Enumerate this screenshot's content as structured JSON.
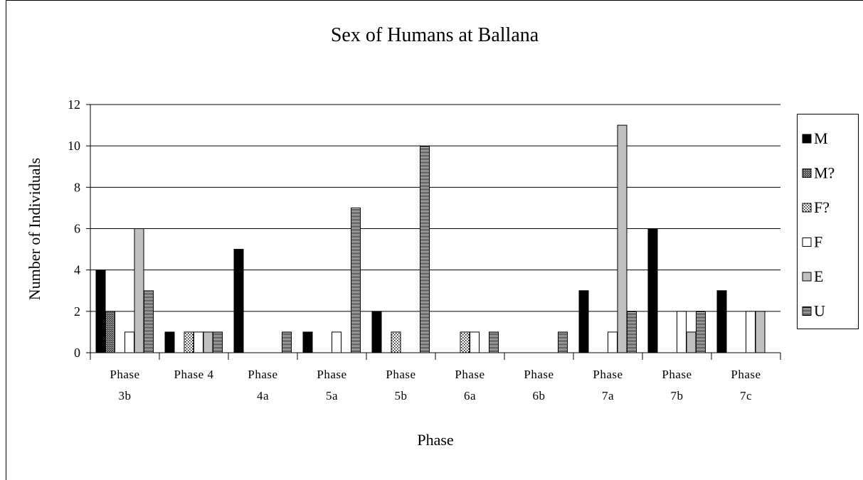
{
  "chart_data": {
    "type": "bar",
    "title": "Sex of Humans at Ballana",
    "x_label": "Phase",
    "y_label": "Number of Individuals",
    "categories": [
      "Phase 3b",
      "Phase 4",
      "Phase 4a",
      "Phase 5a",
      "Phase 5b",
      "Phase 6a",
      "Phase 6b",
      "Phase 7a",
      "Phase 7b",
      "Phase 7c"
    ],
    "series": [
      {
        "name": "M",
        "color": "#000000",
        "pattern": "solid",
        "values": [
          4,
          1,
          5,
          1,
          2,
          0,
          0,
          3,
          6,
          3
        ]
      },
      {
        "name": "M?",
        "color": "#808080",
        "pattern": "crosshatch",
        "values": [
          2,
          0,
          0,
          0,
          0,
          0,
          0,
          0,
          0,
          0
        ]
      },
      {
        "name": "F?",
        "color": "#ffffff",
        "pattern": "dots",
        "values": [
          0,
          1,
          0,
          0,
          1,
          1,
          0,
          0,
          0,
          0
        ]
      },
      {
        "name": "F",
        "color": "#ffffff",
        "pattern": "solid",
        "values": [
          1,
          1,
          0,
          1,
          0,
          1,
          0,
          1,
          2,
          2
        ]
      },
      {
        "name": "E",
        "color": "#c0c0c0",
        "pattern": "solid",
        "values": [
          6,
          1,
          0,
          0,
          0,
          0,
          0,
          11,
          1,
          2
        ]
      },
      {
        "name": "U",
        "color": "#ffffff",
        "pattern": "hlines",
        "values": [
          3,
          1,
          1,
          7,
          10,
          1,
          1,
          2,
          2,
          0
        ]
      }
    ],
    "ylim": [
      0,
      12
    ],
    "yticks": [
      0,
      2,
      4,
      6,
      8,
      10,
      12
    ],
    "grid": true,
    "legend": "right"
  }
}
